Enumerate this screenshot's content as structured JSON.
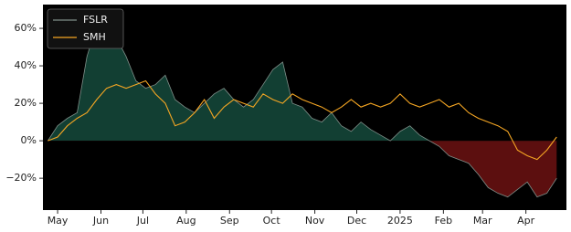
{
  "chart_data": {
    "type": "line",
    "x": [
      0,
      7,
      14,
      21,
      28,
      35,
      42,
      49,
      56,
      63,
      70,
      77,
      84,
      91,
      98,
      105,
      112,
      119,
      126,
      133,
      140,
      147,
      154,
      161,
      168,
      175,
      182,
      189,
      196,
      203,
      210,
      217,
      224,
      231,
      238,
      245,
      252,
      259,
      266,
      273,
      280,
      287,
      294,
      301,
      308,
      315,
      322,
      329,
      336,
      343,
      350,
      357,
      364
    ],
    "series": [
      {
        "name": "FSLR",
        "color": "#7f8f89",
        "fill_positive": "#123f33",
        "fill_negative": "#5c0f0f",
        "values": [
          0,
          8,
          12,
          15,
          45,
          62,
          60,
          55,
          45,
          32,
          28,
          30,
          35,
          22,
          18,
          15,
          20,
          25,
          28,
          22,
          18,
          22,
          30,
          38,
          42,
          20,
          18,
          12,
          10,
          15,
          8,
          5,
          10,
          6,
          3,
          0,
          5,
          8,
          3,
          0,
          -3,
          -8,
          -10,
          -12,
          -18,
          -25,
          -28,
          -30,
          -26,
          -22,
          -30,
          -28,
          -20
        ]
      },
      {
        "name": "SMH",
        "color": "#f5a623",
        "values": [
          0,
          2,
          8,
          12,
          15,
          22,
          28,
          30,
          28,
          30,
          32,
          25,
          20,
          8,
          10,
          15,
          22,
          12,
          18,
          22,
          20,
          18,
          25,
          22,
          20,
          25,
          22,
          20,
          18,
          15,
          18,
          22,
          18,
          20,
          18,
          20,
          25,
          20,
          18,
          20,
          22,
          18,
          20,
          15,
          12,
          10,
          8,
          5,
          -5,
          -8,
          -10,
          -5,
          2
        ]
      }
    ],
    "xlim": [
      -3.5,
      371
    ],
    "xticks": [
      {
        "value": 7,
        "label": "May"
      },
      {
        "value": 38,
        "label": "Jun"
      },
      {
        "value": 68,
        "label": "Jul"
      },
      {
        "value": 99,
        "label": "Aug"
      },
      {
        "value": 130,
        "label": "Sep"
      },
      {
        "value": 160,
        "label": "Oct"
      },
      {
        "value": 191,
        "label": "Nov"
      },
      {
        "value": 221,
        "label": "Dec"
      },
      {
        "value": 252,
        "label": "2025"
      },
      {
        "value": 283,
        "label": "Feb"
      },
      {
        "value": 311,
        "label": "Mar"
      },
      {
        "value": 342,
        "label": "Apr"
      }
    ],
    "ylim": [
      -37,
      72.7
    ],
    "yticks": [
      {
        "value": -20,
        "label": "−20%"
      },
      {
        "value": 0,
        "label": "0%"
      },
      {
        "value": 20,
        "label": "20%"
      },
      {
        "value": 40,
        "label": "40%"
      },
      {
        "value": 60,
        "label": "60%"
      }
    ],
    "legend": "upper left"
  }
}
